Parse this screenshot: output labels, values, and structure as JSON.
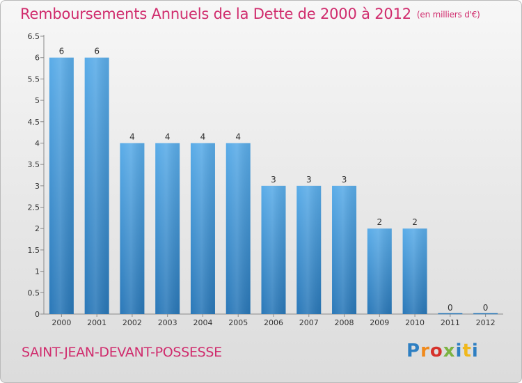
{
  "page": {
    "title": "Remboursements Annuels de la Dette de 2000 à 2012",
    "subtitle": "(en milliers d'€)",
    "commune": "SAINT-JEAN-DEVANT-POSSESSE",
    "logo": {
      "letters": [
        "P",
        "r",
        "o",
        "x",
        "i",
        "t",
        "i"
      ],
      "colors": [
        "#2e7fc2",
        "#f08a1c",
        "#d6322b",
        "#7cb342",
        "#2e7fc2",
        "#f0b81c",
        "#2e7fc2"
      ]
    }
  },
  "chart_data": {
    "type": "bar",
    "title": "Remboursements Annuels de la Dette de 2000 à 2012",
    "subtitle": "(en milliers d'€)",
    "categories": [
      "2000",
      "2001",
      "2002",
      "2003",
      "2004",
      "2005",
      "2006",
      "2007",
      "2008",
      "2009",
      "2010",
      "2011",
      "2012"
    ],
    "values": [
      6,
      6,
      4,
      4,
      4,
      4,
      3,
      3,
      3,
      2,
      2,
      0,
      0
    ],
    "data_labels": [
      "6",
      "6",
      "4",
      "4",
      "4",
      "4",
      "3",
      "3",
      "3",
      "2",
      "2",
      "0",
      "0"
    ],
    "ylim": [
      0,
      6.5
    ],
    "yticks": [
      0,
      0.5,
      1,
      1.5,
      2,
      2.5,
      3,
      3.5,
      4,
      4.5,
      5,
      5.5,
      6,
      6.5
    ],
    "ytick_labels": [
      "0",
      "0.5",
      "1",
      "1.5",
      "2",
      "2.5",
      "3",
      "3.5",
      "4",
      "4.5",
      "5",
      "5.5",
      "6",
      "6.5"
    ],
    "xlabel": "",
    "ylabel": "",
    "grid": false,
    "colors": {
      "bar_top": "#5aace8",
      "bar_bottom": "#2a78b8",
      "axis": "#8a8a8a",
      "text": "#333333",
      "title": "#d02c6d"
    }
  }
}
